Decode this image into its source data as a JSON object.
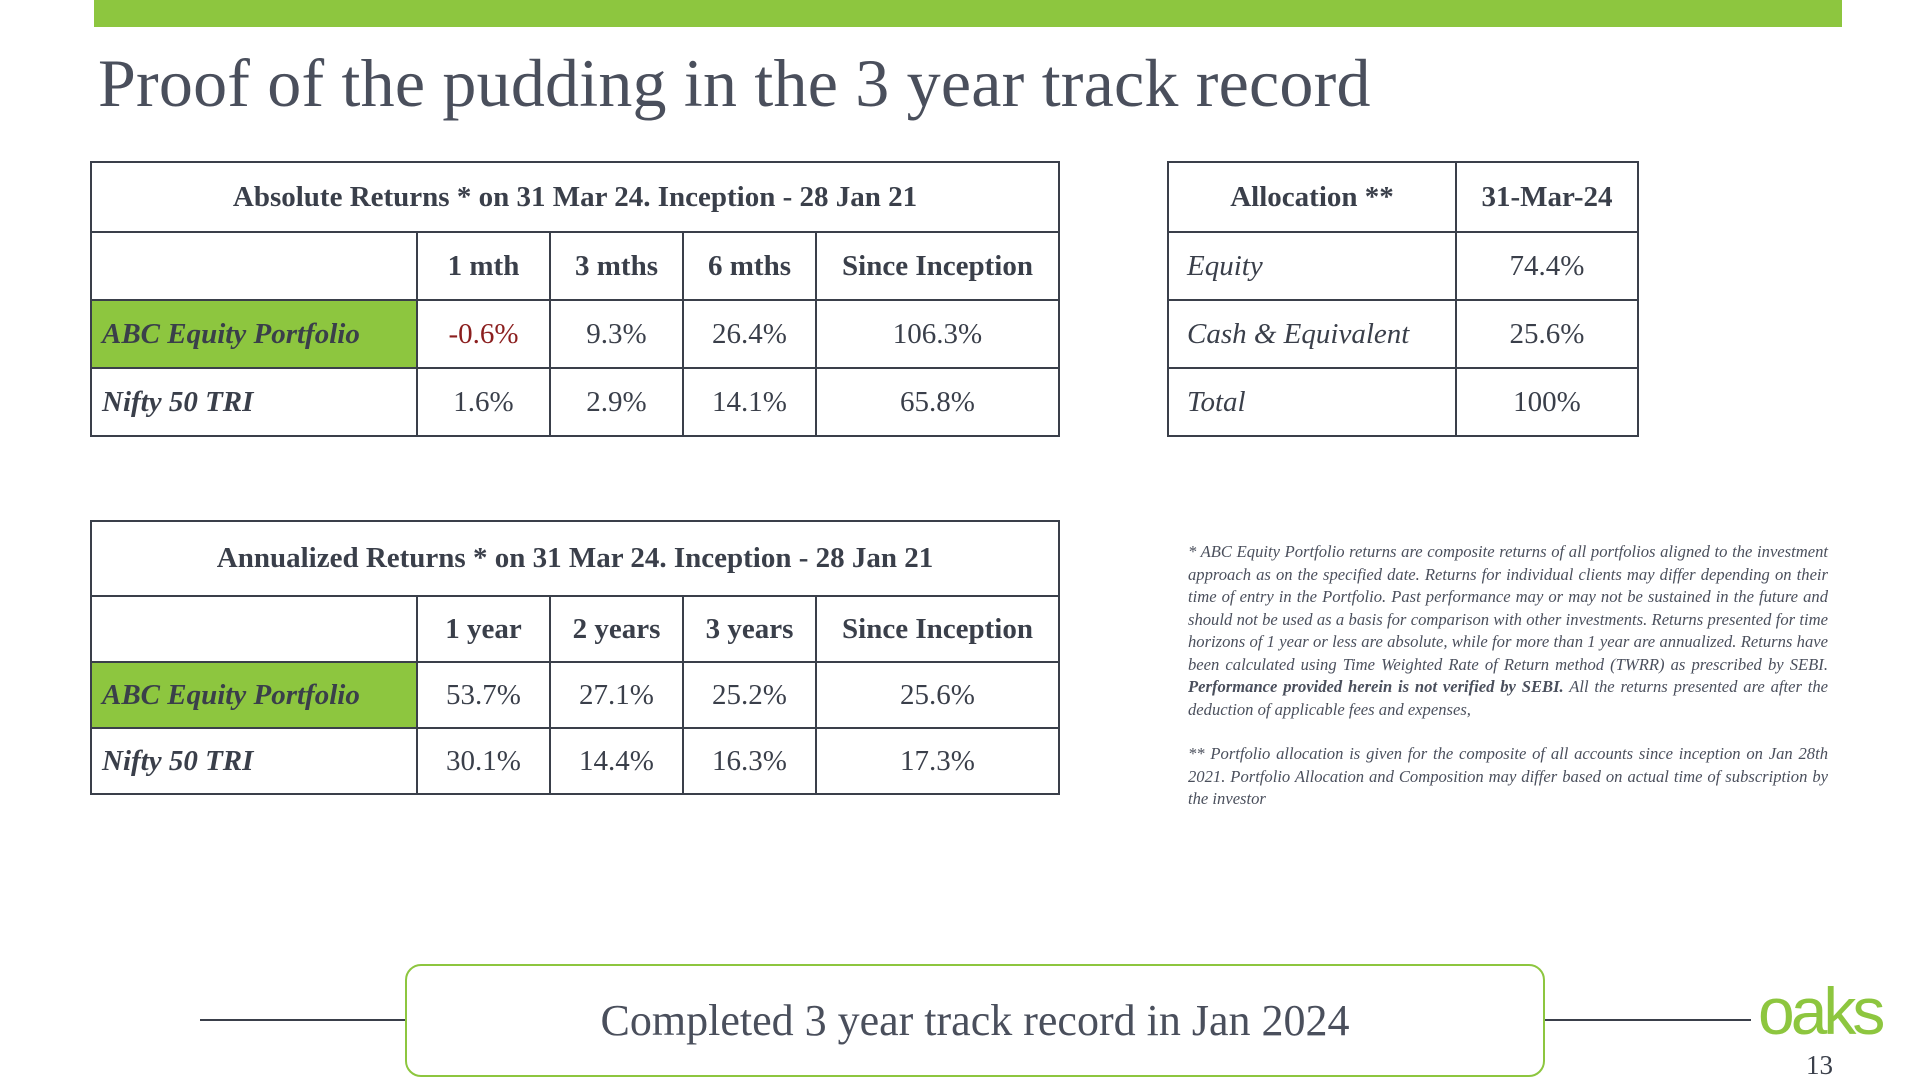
{
  "slide": {
    "title": "Proof of the pudding in the 3 year track record",
    "page_number": "13",
    "logo_text": "oaks",
    "accent_color": "#8dc63f"
  },
  "absolute_returns": {
    "caption": "Absolute Returns *  on 31 Mar 24. Inception - 28 Jan 21",
    "columns": [
      "1 mth",
      "3 mths",
      "6 mths",
      "Since Inception"
    ],
    "rows": [
      {
        "label": "ABC Equity Portfolio",
        "values": [
          "-0.6%",
          "9.3%",
          "26.4%",
          "106.3%"
        ]
      },
      {
        "label": "Nifty 50 TRI",
        "values": [
          "1.6%",
          "2.9%",
          "14.1%",
          "65.8%"
        ]
      }
    ]
  },
  "annualized_returns": {
    "caption": "Annualized Returns * on 31 Mar 24. Inception - 28 Jan 21",
    "columns": [
      "1 year",
      "2 years",
      "3 years",
      "Since Inception"
    ],
    "rows": [
      {
        "label": "ABC Equity Portfolio",
        "values": [
          "53.7%",
          "27.1%",
          "25.2%",
          "25.6%"
        ]
      },
      {
        "label": "Nifty 50 TRI",
        "values": [
          "30.1%",
          "14.4%",
          "16.3%",
          "17.3%"
        ]
      }
    ]
  },
  "allocation": {
    "header_label": "Allocation **",
    "header_date": "31-Mar-24",
    "rows": [
      {
        "label": "Equity",
        "value": "74.4%"
      },
      {
        "label": "Cash & Equivalent",
        "value": "25.6%"
      },
      {
        "label": "Total",
        "value": "100%"
      }
    ]
  },
  "notes": {
    "note1_text": "* ABC  Equity Portfolio  returns are composite returns of all portfolios aligned to the investment approach as on the specified date. Returns for individual clients may differ depending on their time of entry in the Portfolio. Past performance may or may not be sustained in the future and should not be used as a basis for comparison with other investments. Returns presented for time horizons of 1 year or less are absolute, while for more than 1 year are annualized. Returns have been calculated using Time Weighted Rate of Return method (TWRR) as prescribed by SEBI. ",
    "note1_bold": "Performance provided herein is not verified by SEBI.",
    "note1_tail": " All the returns presented are after the deduction of applicable fees and expenses,",
    "note2_text": "** Portfolio allocation is given for the composite of all accounts since inception on Jan 28th 2021. Portfolio Allocation and Composition may differ based on actual time of subscription by the investor"
  },
  "footer": {
    "banner_text": "Completed 3 year track record in Jan 2024"
  }
}
